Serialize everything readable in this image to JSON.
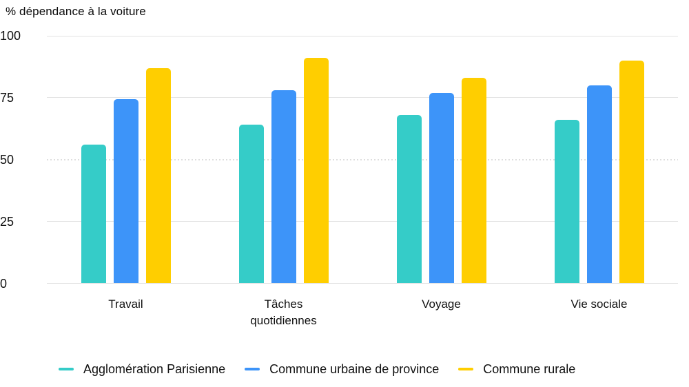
{
  "chart_data": {
    "type": "bar",
    "title": "% dépendance à la voiture",
    "categories": [
      "Travail",
      "Tâches quotidiennes",
      "Voyage",
      "Vie sociale"
    ],
    "series": [
      {
        "name": "Agglomération Parisienne",
        "color": "#35CCC8",
        "values": [
          56,
          64,
          68,
          66
        ]
      },
      {
        "name": "Commune urbaine de province",
        "color": "#3D94F9",
        "values": [
          74.5,
          78,
          77,
          80
        ]
      },
      {
        "name": "Commune rurale",
        "color": "#FFCE00",
        "values": [
          87,
          91,
          83,
          90
        ]
      }
    ],
    "ylim": [
      0,
      100
    ],
    "yticks": [
      0,
      25,
      50,
      75,
      100
    ],
    "grid": "horizontal",
    "dotted_gridline_value": 50,
    "legend_position": "bottom"
  },
  "colors": {
    "background": "#FFFFFF",
    "gridline": "#E2E2E2",
    "dotted_gridline": "#DEDEDE",
    "text": "#111111"
  }
}
